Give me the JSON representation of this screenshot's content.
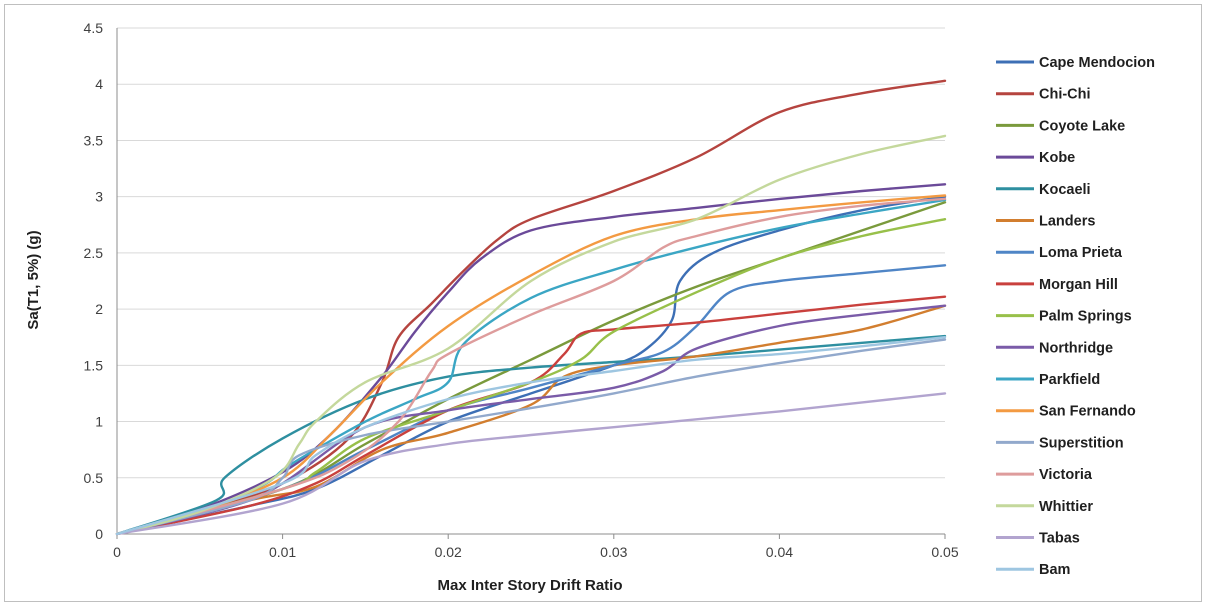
{
  "chart_data": {
    "type": "line",
    "title": "",
    "xlabel": "Max Inter Story Drift Ratio",
    "ylabel": "Sa(T1, 5%) (g)",
    "xlim": [
      0,
      0.05
    ],
    "ylim": [
      0,
      4.5
    ],
    "x_ticks": [
      "0",
      "0.01",
      "0.02",
      "0.03",
      "0.04",
      "0.05"
    ],
    "y_ticks": [
      "0",
      "0.5",
      "1",
      "1.5",
      "2",
      "2.5",
      "3",
      "3.5",
      "4",
      "4.5"
    ],
    "grid": "horizontal",
    "legend": "right",
    "series": [
      {
        "name": "Cape Mendocion",
        "color": "#3d6fb5",
        "points": [
          [
            0,
            0
          ],
          [
            0.008,
            0.25
          ],
          [
            0.012,
            0.4
          ],
          [
            0.016,
            0.7
          ],
          [
            0.02,
            1.0
          ],
          [
            0.025,
            1.25
          ],
          [
            0.03,
            1.5
          ],
          [
            0.032,
            1.65
          ],
          [
            0.0335,
            1.9
          ],
          [
            0.034,
            2.25
          ],
          [
            0.036,
            2.5
          ],
          [
            0.04,
            2.7
          ],
          [
            0.045,
            2.88
          ],
          [
            0.05,
            3.0
          ]
        ]
      },
      {
        "name": "Chi-Chi",
        "color": "#b5443f",
        "points": [
          [
            0,
            0
          ],
          [
            0.005,
            0.2
          ],
          [
            0.01,
            0.45
          ],
          [
            0.014,
            0.85
          ],
          [
            0.016,
            1.35
          ],
          [
            0.017,
            1.75
          ],
          [
            0.019,
            2.05
          ],
          [
            0.021,
            2.35
          ],
          [
            0.023,
            2.62
          ],
          [
            0.025,
            2.8
          ],
          [
            0.03,
            3.05
          ],
          [
            0.035,
            3.35
          ],
          [
            0.04,
            3.75
          ],
          [
            0.045,
            3.92
          ],
          [
            0.05,
            4.03
          ]
        ]
      },
      {
        "name": "Coyote Lake",
        "color": "#7a9a3c",
        "points": [
          [
            0,
            0
          ],
          [
            0.01,
            0.4
          ],
          [
            0.015,
            0.8
          ],
          [
            0.02,
            1.2
          ],
          [
            0.025,
            1.55
          ],
          [
            0.03,
            1.9
          ],
          [
            0.035,
            2.2
          ],
          [
            0.04,
            2.45
          ],
          [
            0.045,
            2.7
          ],
          [
            0.05,
            2.95
          ]
        ]
      },
      {
        "name": "Kobe",
        "color": "#6b4a99",
        "points": [
          [
            0,
            0
          ],
          [
            0.005,
            0.22
          ],
          [
            0.01,
            0.55
          ],
          [
            0.013,
            0.9
          ],
          [
            0.016,
            1.4
          ],
          [
            0.018,
            1.8
          ],
          [
            0.02,
            2.15
          ],
          [
            0.022,
            2.45
          ],
          [
            0.025,
            2.7
          ],
          [
            0.03,
            2.82
          ],
          [
            0.035,
            2.9
          ],
          [
            0.04,
            2.98
          ],
          [
            0.045,
            3.05
          ],
          [
            0.05,
            3.11
          ]
        ]
      },
      {
        "name": "Kocaeli",
        "color": "#2e8fa0",
        "points": [
          [
            0,
            0
          ],
          [
            0.006,
            0.3
          ],
          [
            0.0065,
            0.5
          ],
          [
            0.01,
            0.85
          ],
          [
            0.015,
            1.2
          ],
          [
            0.02,
            1.4
          ],
          [
            0.025,
            1.48
          ],
          [
            0.03,
            1.53
          ],
          [
            0.035,
            1.58
          ],
          [
            0.04,
            1.64
          ],
          [
            0.045,
            1.7
          ],
          [
            0.05,
            1.76
          ]
        ]
      },
      {
        "name": "Landers",
        "color": "#d27e2f",
        "points": [
          [
            0,
            0
          ],
          [
            0.008,
            0.3
          ],
          [
            0.012,
            0.42
          ],
          [
            0.016,
            0.75
          ],
          [
            0.02,
            0.9
          ],
          [
            0.025,
            1.15
          ],
          [
            0.027,
            1.4
          ],
          [
            0.03,
            1.5
          ],
          [
            0.035,
            1.58
          ],
          [
            0.04,
            1.7
          ],
          [
            0.045,
            1.82
          ],
          [
            0.05,
            2.03
          ]
        ]
      },
      {
        "name": "Loma Prieta",
        "color": "#4f85c6",
        "points": [
          [
            0,
            0
          ],
          [
            0.01,
            0.4
          ],
          [
            0.015,
            0.75
          ],
          [
            0.02,
            1.1
          ],
          [
            0.025,
            1.3
          ],
          [
            0.03,
            1.5
          ],
          [
            0.033,
            1.62
          ],
          [
            0.035,
            1.85
          ],
          [
            0.037,
            2.15
          ],
          [
            0.04,
            2.25
          ],
          [
            0.045,
            2.32
          ],
          [
            0.05,
            2.39
          ]
        ]
      },
      {
        "name": "Morgan Hill",
        "color": "#c9403d",
        "points": [
          [
            0,
            0
          ],
          [
            0.008,
            0.25
          ],
          [
            0.012,
            0.45
          ],
          [
            0.015,
            0.7
          ],
          [
            0.02,
            1.1
          ],
          [
            0.025,
            1.35
          ],
          [
            0.027,
            1.6
          ],
          [
            0.028,
            1.78
          ],
          [
            0.03,
            1.82
          ],
          [
            0.035,
            1.88
          ],
          [
            0.04,
            1.96
          ],
          [
            0.045,
            2.04
          ],
          [
            0.05,
            2.11
          ]
        ]
      },
      {
        "name": "Palm Springs",
        "color": "#98c04a",
        "points": [
          [
            0,
            0
          ],
          [
            0.01,
            0.4
          ],
          [
            0.012,
            0.55
          ],
          [
            0.015,
            0.85
          ],
          [
            0.02,
            1.1
          ],
          [
            0.025,
            1.35
          ],
          [
            0.028,
            1.55
          ],
          [
            0.03,
            1.8
          ],
          [
            0.035,
            2.15
          ],
          [
            0.04,
            2.45
          ],
          [
            0.045,
            2.65
          ],
          [
            0.05,
            2.8
          ]
        ]
      },
      {
        "name": "Northridge",
        "color": "#7a5ba8",
        "points": [
          [
            0,
            0
          ],
          [
            0.007,
            0.25
          ],
          [
            0.01,
            0.45
          ],
          [
            0.015,
            0.95
          ],
          [
            0.02,
            1.1
          ],
          [
            0.025,
            1.2
          ],
          [
            0.03,
            1.3
          ],
          [
            0.033,
            1.45
          ],
          [
            0.035,
            1.65
          ],
          [
            0.04,
            1.85
          ],
          [
            0.045,
            1.95
          ],
          [
            0.05,
            2.03
          ]
        ]
      },
      {
        "name": "Parkfield",
        "color": "#3ba6c4",
        "points": [
          [
            0,
            0
          ],
          [
            0.006,
            0.25
          ],
          [
            0.009,
            0.45
          ],
          [
            0.0105,
            0.62
          ],
          [
            0.015,
            1.0
          ],
          [
            0.018,
            1.2
          ],
          [
            0.02,
            1.35
          ],
          [
            0.021,
            1.7
          ],
          [
            0.025,
            2.1
          ],
          [
            0.03,
            2.35
          ],
          [
            0.035,
            2.55
          ],
          [
            0.04,
            2.72
          ],
          [
            0.045,
            2.85
          ],
          [
            0.05,
            2.97
          ]
        ]
      },
      {
        "name": "San Fernando",
        "color": "#f39a42",
        "points": [
          [
            0,
            0
          ],
          [
            0.005,
            0.2
          ],
          [
            0.01,
            0.5
          ],
          [
            0.013,
            0.9
          ],
          [
            0.016,
            1.35
          ],
          [
            0.02,
            1.85
          ],
          [
            0.025,
            2.3
          ],
          [
            0.03,
            2.65
          ],
          [
            0.035,
            2.8
          ],
          [
            0.04,
            2.88
          ],
          [
            0.045,
            2.95
          ],
          [
            0.05,
            3.01
          ]
        ]
      },
      {
        "name": "Superstition",
        "color": "#92a9cc",
        "points": [
          [
            0,
            0
          ],
          [
            0.008,
            0.3
          ],
          [
            0.01,
            0.5
          ],
          [
            0.011,
            0.7
          ],
          [
            0.015,
            0.88
          ],
          [
            0.02,
            1.0
          ],
          [
            0.025,
            1.12
          ],
          [
            0.03,
            1.25
          ],
          [
            0.035,
            1.4
          ],
          [
            0.04,
            1.52
          ],
          [
            0.045,
            1.63
          ],
          [
            0.05,
            1.73
          ]
        ]
      },
      {
        "name": "Victoria",
        "color": "#de9c9c",
        "points": [
          [
            0,
            0
          ],
          [
            0.01,
            0.4
          ],
          [
            0.014,
            0.65
          ],
          [
            0.017,
            1.0
          ],
          [
            0.019,
            1.45
          ],
          [
            0.02,
            1.6
          ],
          [
            0.025,
            1.95
          ],
          [
            0.03,
            2.25
          ],
          [
            0.033,
            2.55
          ],
          [
            0.035,
            2.65
          ],
          [
            0.04,
            2.82
          ],
          [
            0.045,
            2.92
          ],
          [
            0.05,
            2.98
          ]
        ]
      },
      {
        "name": "Whittier",
        "color": "#c4d89c",
        "points": [
          [
            0,
            0
          ],
          [
            0.005,
            0.2
          ],
          [
            0.0095,
            0.5
          ],
          [
            0.011,
            0.8
          ],
          [
            0.012,
            1.0
          ],
          [
            0.015,
            1.35
          ],
          [
            0.02,
            1.65
          ],
          [
            0.025,
            2.25
          ],
          [
            0.03,
            2.6
          ],
          [
            0.035,
            2.8
          ],
          [
            0.04,
            3.15
          ],
          [
            0.045,
            3.38
          ],
          [
            0.05,
            3.54
          ]
        ]
      },
      {
        "name": "Tabas",
        "color": "#b2a4cf",
        "points": [
          [
            0,
            0
          ],
          [
            0.01,
            0.27
          ],
          [
            0.015,
            0.65
          ],
          [
            0.02,
            0.8
          ],
          [
            0.025,
            0.88
          ],
          [
            0.03,
            0.95
          ],
          [
            0.035,
            1.02
          ],
          [
            0.04,
            1.09
          ],
          [
            0.045,
            1.17
          ],
          [
            0.05,
            1.25
          ]
        ]
      },
      {
        "name": "Bam",
        "color": "#9ec6e1",
        "points": [
          [
            0,
            0
          ],
          [
            0.01,
            0.45
          ],
          [
            0.012,
            0.7
          ],
          [
            0.015,
            0.95
          ],
          [
            0.02,
            1.2
          ],
          [
            0.025,
            1.35
          ],
          [
            0.03,
            1.45
          ],
          [
            0.035,
            1.55
          ],
          [
            0.04,
            1.6
          ],
          [
            0.045,
            1.67
          ],
          [
            0.05,
            1.75
          ]
        ]
      }
    ]
  }
}
